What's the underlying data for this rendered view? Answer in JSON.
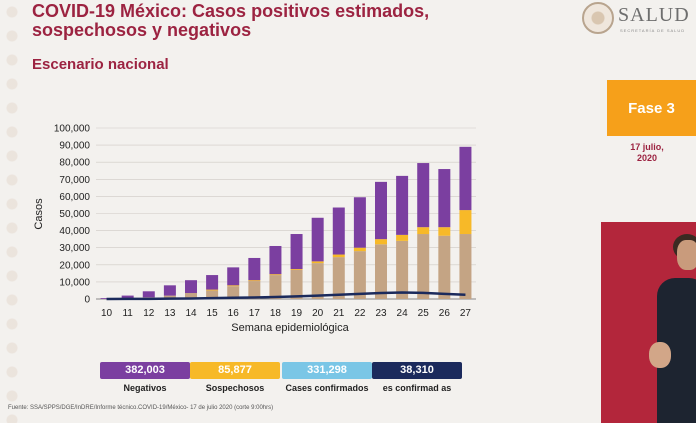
{
  "header": {
    "title_line1": "COVID-19 México: Casos positivos estimados,",
    "title_line2": "sospechosos y negativos",
    "subtitle": "Escenario nacional",
    "logo_text": "SALUD",
    "logo_subtext": "SECRETARÍA DE SALUD"
  },
  "side": {
    "phase": "Fase 3",
    "date_line1": "17 julio,",
    "date_line2": "2020"
  },
  "legend": [
    {
      "value": "382,003",
      "label": "Negativos",
      "color": "#7b3fa0"
    },
    {
      "value": "85,877",
      "label": "Sospechosos",
      "color": "#f7b928"
    },
    {
      "value": "331,298",
      "label": "Cases confirmados",
      "color": "#7ac6e6"
    },
    {
      "value": "38,310",
      "label": "es confirmad as",
      "color": "#1b2a5c"
    }
  ],
  "footer": "Fuente: SSA/SPPS/DGE/InDRE/Informe técnico.COVID-19/México- 17 de julio 2020 (corte 9:00hrs)",
  "chart_data": {
    "type": "bar",
    "categories": [
      "10",
      "11",
      "12",
      "13",
      "14",
      "15",
      "16",
      "17",
      "18",
      "19",
      "20",
      "21",
      "22",
      "23",
      "24",
      "25",
      "26",
      "27"
    ],
    "series": [
      {
        "name": "Cases confirmados",
        "color": "#c4a484",
        "values": [
          0,
          500,
          1000,
          2000,
          3500,
          5000,
          7500,
          10500,
          14000,
          17000,
          21000,
          24500,
          28000,
          32000,
          34000,
          38000,
          37000,
          38000
        ]
      },
      {
        "name": "Sospechosos",
        "color": "#f7b928",
        "values": [
          0,
          0,
          0,
          0,
          0,
          500,
          500,
          500,
          500,
          500,
          1000,
          1500,
          2000,
          3000,
          3500,
          4000,
          5000,
          14000
        ]
      },
      {
        "name": "Negativos",
        "color": "#7b3fa0",
        "values": [
          500,
          1500,
          3500,
          6000,
          7500,
          8500,
          10500,
          13000,
          16500,
          20500,
          25500,
          27500,
          29500,
          33500,
          34500,
          37500,
          34000,
          37000
        ]
      }
    ],
    "line": {
      "name": "es confirmad as",
      "color": "#1b2a5c",
      "values": [
        0,
        50,
        100,
        200,
        300,
        500,
        700,
        900,
        1200,
        1500,
        2000,
        2500,
        3000,
        3500,
        3800,
        3600,
        3000,
        2500
      ]
    },
    "ylabel": "Casos",
    "xlabel": "Semana epidemiológica",
    "ylim": [
      0,
      100000
    ],
    "yticks": [
      "0",
      "10,000",
      "20,000",
      "30,000",
      "40,000",
      "50,000",
      "60,000",
      "70,000",
      "80,000",
      "90,000",
      "100,000"
    ]
  }
}
